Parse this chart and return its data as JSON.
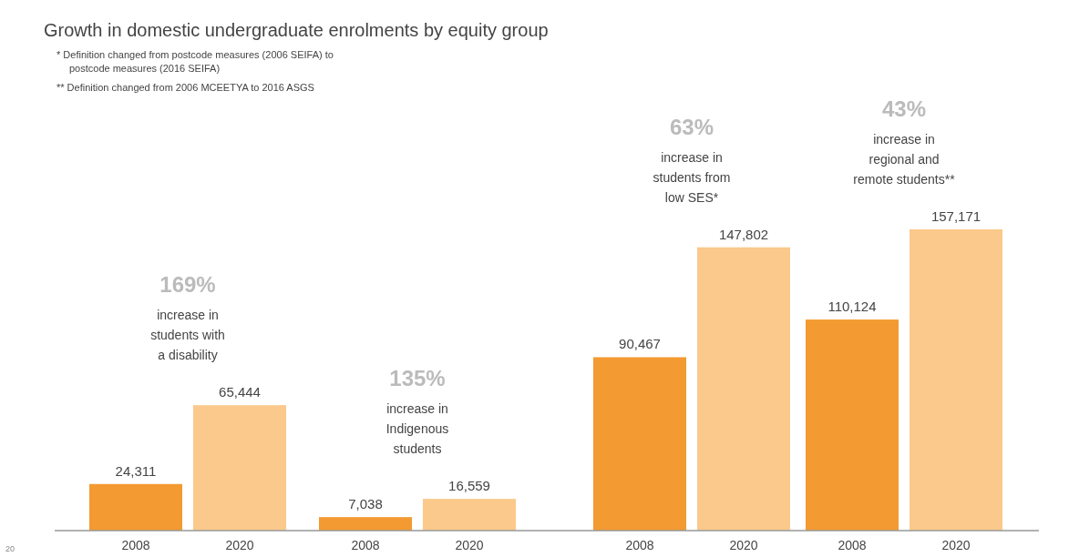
{
  "chart_data": {
    "type": "bar",
    "title": "Growth in domestic undergraduate enrolments by equity group",
    "categories": [
      "2008",
      "2020",
      "2008",
      "2020",
      "2008",
      "2020",
      "2008",
      "2020"
    ],
    "values": [
      24311,
      65444,
      7038,
      16559,
      90467,
      147802,
      110124,
      157171
    ],
    "colors": [
      "#f39a32",
      "#fbc98b",
      "#f39a32",
      "#fbc98b",
      "#f39a32",
      "#fbc98b",
      "#f39a32",
      "#fbc98b"
    ],
    "value_labels": [
      "24,311",
      "65,444",
      "7,038",
      "16,559",
      "90,467",
      "147,802",
      "110,124",
      "157,171"
    ],
    "annotations": [
      "*  Definition changed from postcode measures (2006 SEIFA) to\npostcode measures (2016 SEIFA)",
      "** Definition changed from 2006 MCEETYA to 2016 ASGS",
      "169%\nincrease in\nstudents with\na disability",
      "135%\nincrease in\nIndigenous\nstudents",
      "63%\nincrease in\nstudents from\nlow SES*",
      "43%\nincrease in\nregional and\nremote students**",
      "20"
    ]
  }
}
